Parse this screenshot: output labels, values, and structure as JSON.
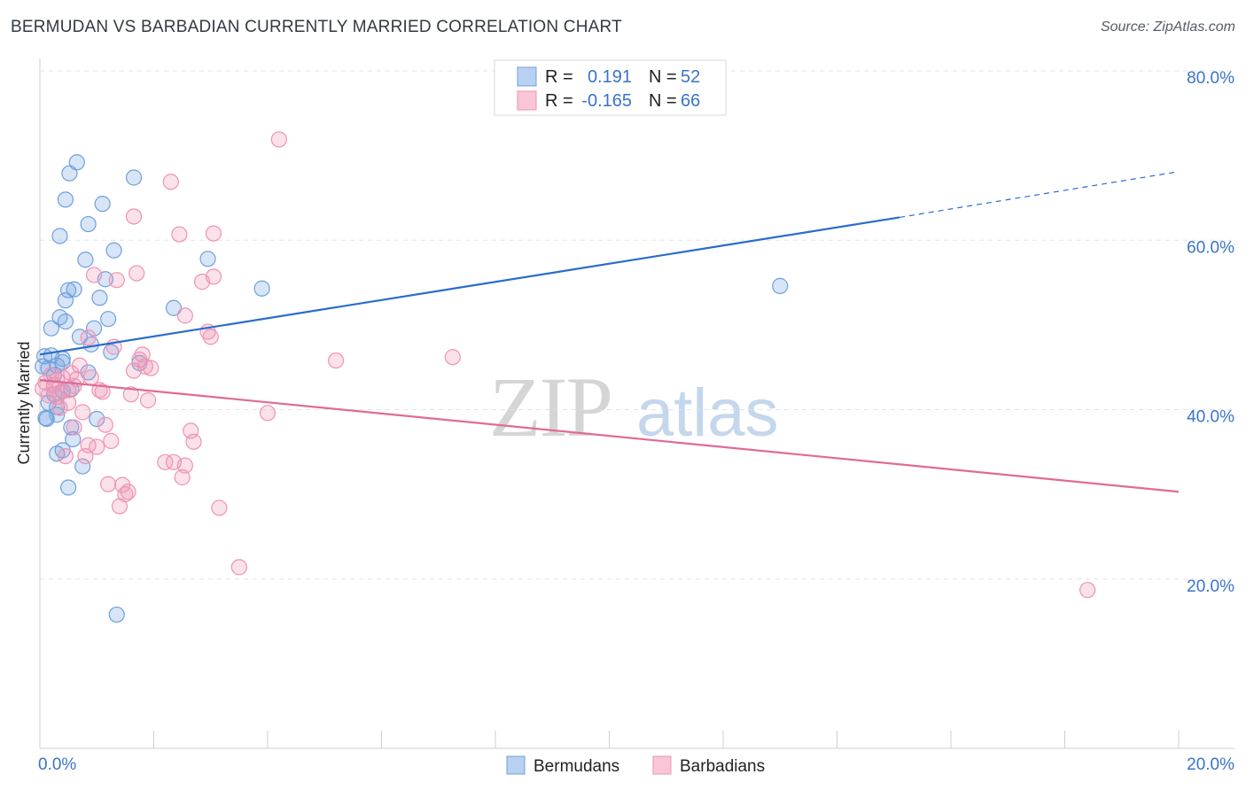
{
  "chart_data": {
    "type": "scatter",
    "title": "BERMUDAN VS BARBADIAN CURRENTLY MARRIED CORRELATION CHART",
    "source": "Source: ZipAtlas.com",
    "xlabel": "",
    "ylabel": "Currently Married",
    "xlim": [
      0,
      20
    ],
    "ylim": [
      0,
      80
    ],
    "x_tick_labels": [
      "0.0%",
      "20.0%"
    ],
    "y_tick_labels": [
      {
        "value": 20,
        "label": "20.0%"
      },
      {
        "value": 40,
        "label": "40.0%"
      },
      {
        "value": 60,
        "label": "60.0%"
      },
      {
        "value": 80,
        "label": "80.0%"
      }
    ],
    "legend": [
      {
        "series": "Bermudans",
        "r_label": "R =",
        "r_value": "0.191",
        "n_label": "N =",
        "n_value": "52"
      },
      {
        "series": "Barbadians",
        "r_label": "R =",
        "r_value": "-0.165",
        "n_label": "N =",
        "n_value": "66"
      }
    ],
    "watermark": {
      "zip": "ZIP",
      "atlas": "atlas"
    },
    "series": [
      {
        "name": "Bermudans",
        "color": "#6fa0de",
        "line_color": "#2a6ccb",
        "trend": {
          "x0": 0,
          "y0": 46.5,
          "x1": 15.1,
          "y1": 62.7,
          "x_dash_end": 20,
          "y_dash_end": 68.1
        },
        "points": [
          [
            0.05,
            45.1
          ],
          [
            0.08,
            46.3
          ],
          [
            0.1,
            39
          ],
          [
            0.12,
            38.9
          ],
          [
            0.15,
            40.8
          ],
          [
            0.15,
            44.9
          ],
          [
            0.2,
            49.6
          ],
          [
            0.25,
            44.1
          ],
          [
            0.25,
            41.8
          ],
          [
            0.3,
            40.3
          ],
          [
            0.3,
            34.8
          ],
          [
            0.3,
            45.2
          ],
          [
            0.3,
            39.4
          ],
          [
            0.35,
            50.9
          ],
          [
            0.35,
            60.5
          ],
          [
            0.4,
            45.6
          ],
          [
            0.4,
            46
          ],
          [
            0.4,
            35.2
          ],
          [
            0.4,
            42.2
          ],
          [
            0.45,
            50.4
          ],
          [
            0.45,
            52.9
          ],
          [
            0.45,
            64.8
          ],
          [
            0.5,
            30.8
          ],
          [
            0.5,
            54.1
          ],
          [
            0.52,
            67.9
          ],
          [
            0.55,
            37.9
          ],
          [
            0.58,
            36.5
          ],
          [
            0.6,
            54.2
          ],
          [
            0.65,
            69.2
          ],
          [
            0.7,
            48.6
          ],
          [
            0.75,
            33.3
          ],
          [
            0.8,
            57.7
          ],
          [
            0.85,
            44.4
          ],
          [
            0.85,
            61.9
          ],
          [
            0.9,
            47.7
          ],
          [
            0.95,
            49.6
          ],
          [
            1.0,
            38.9
          ],
          [
            1.05,
            53.2
          ],
          [
            1.1,
            64.3
          ],
          [
            1.15,
            55.4
          ],
          [
            1.2,
            50.7
          ],
          [
            1.25,
            46.8
          ],
          [
            1.3,
            58.8
          ],
          [
            1.35,
            15.8
          ],
          [
            1.65,
            67.4
          ],
          [
            1.75,
            45.5
          ],
          [
            2.35,
            52
          ],
          [
            2.95,
            57.8
          ],
          [
            3.9,
            54.3
          ],
          [
            13.0,
            54.6
          ],
          [
            0.2,
            46.4
          ],
          [
            0.55,
            42.4
          ]
        ]
      },
      {
        "name": "Barbadians",
        "color": "#ee93b3",
        "line_color": "#e06a96",
        "trend": {
          "x0": 0,
          "y0": 43.5,
          "x1": 20,
          "y1": 30.3
        },
        "points": [
          [
            0.05,
            42.5
          ],
          [
            0.1,
            43.2
          ],
          [
            0.15,
            41.7
          ],
          [
            0.2,
            44.1
          ],
          [
            0.25,
            42.9
          ],
          [
            0.3,
            41.5
          ],
          [
            0.35,
            40.2
          ],
          [
            0.4,
            43.8
          ],
          [
            0.45,
            34.5
          ],
          [
            0.5,
            42.3
          ],
          [
            0.55,
            44.3
          ],
          [
            0.6,
            37.9
          ],
          [
            0.65,
            43.6
          ],
          [
            0.7,
            45.2
          ],
          [
            0.75,
            39.7
          ],
          [
            0.8,
            34.5
          ],
          [
            0.85,
            35.8
          ],
          [
            0.85,
            48.5
          ],
          [
            0.9,
            43.8
          ],
          [
            0.95,
            55.9
          ],
          [
            1.0,
            35.6
          ],
          [
            1.05,
            42.3
          ],
          [
            1.1,
            42.1
          ],
          [
            1.15,
            38.2
          ],
          [
            1.2,
            31.2
          ],
          [
            1.25,
            36.3
          ],
          [
            1.3,
            47.4
          ],
          [
            1.35,
            55.3
          ],
          [
            1.4,
            28.6
          ],
          [
            1.45,
            31.1
          ],
          [
            1.5,
            30
          ],
          [
            1.55,
            30.3
          ],
          [
            1.6,
            41.8
          ],
          [
            1.65,
            44.6
          ],
          [
            1.65,
            62.8
          ],
          [
            1.7,
            56.1
          ],
          [
            1.75,
            45.9
          ],
          [
            1.8,
            46.5
          ],
          [
            1.85,
            45.1
          ],
          [
            1.9,
            41.1
          ],
          [
            1.95,
            44.9
          ],
          [
            2.2,
            33.8
          ],
          [
            2.3,
            66.9
          ],
          [
            2.35,
            33.8
          ],
          [
            2.45,
            60.7
          ],
          [
            2.5,
            32
          ],
          [
            2.55,
            51.1
          ],
          [
            2.55,
            33.4
          ],
          [
            2.65,
            37.5
          ],
          [
            2.7,
            36.2
          ],
          [
            2.85,
            55.1
          ],
          [
            2.95,
            49.2
          ],
          [
            3.0,
            48.6
          ],
          [
            3.05,
            55.7
          ],
          [
            3.05,
            60.8
          ],
          [
            3.15,
            28.4
          ],
          [
            3.5,
            21.4
          ],
          [
            4.0,
            39.6
          ],
          [
            4.2,
            71.9
          ],
          [
            5.2,
            45.8
          ],
          [
            7.25,
            46.2
          ],
          [
            18.4,
            18.7
          ],
          [
            0.3,
            43.5
          ],
          [
            0.5,
            40.8
          ],
          [
            0.35,
            42
          ],
          [
            0.6,
            42.8
          ]
        ]
      }
    ]
  }
}
